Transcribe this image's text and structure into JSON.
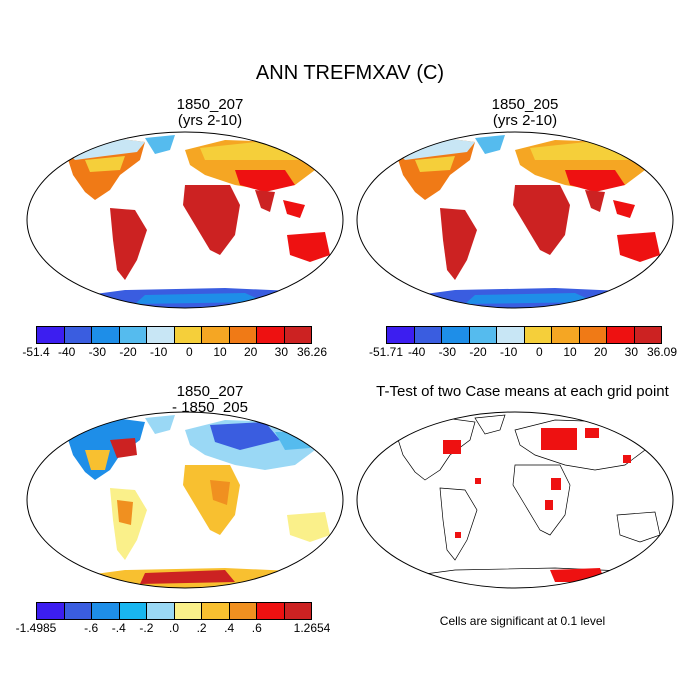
{
  "title": "ANN TREFMXAV (C)",
  "panels": [
    {
      "title_line1": "1850_207",
      "title_line2": "(yrs 2-10)"
    },
    {
      "title_line1": "1850_205",
      "title_line2": "(yrs 2-10)"
    },
    {
      "title_line1": "1850_207",
      "title_line2": "- 1850_205"
    },
    {
      "title_line1": "T-Test of two Case means at each grid point",
      "title_line2": ""
    }
  ],
  "colorbars": [
    {
      "colors": [
        "#3c1ef0",
        "#3a5de0",
        "#1e8ee8",
        "#55bbee",
        "#c8e6f5",
        "#f5cf3a",
        "#f5a623",
        "#f07a16",
        "#ee1111",
        "#cc2222"
      ],
      "ticks": [
        "-51.4",
        "-40",
        "-30",
        "-20",
        "-10",
        "0",
        "10",
        "20",
        "30",
        "36.26"
      ]
    },
    {
      "colors": [
        "#3c1ef0",
        "#3a5de0",
        "#1e8ee8",
        "#55bbee",
        "#c8e6f5",
        "#f5cf3a",
        "#f5a623",
        "#f07a16",
        "#ee1111",
        "#cc2222"
      ],
      "ticks": [
        "-51.71",
        "-40",
        "-30",
        "-20",
        "-10",
        "0",
        "10",
        "20",
        "30",
        "36.09"
      ]
    },
    {
      "colors": [
        "#3c1ef0",
        "#3a5de0",
        "#1e8ee8",
        "#19b6f0",
        "#9ad8f5",
        "#faf08a",
        "#f8c030",
        "#f09020",
        "#ee1111",
        "#cc2222"
      ],
      "ticks": [
        "-1.4985",
        "",
        "-.6",
        "-.4",
        "-.2",
        ".0",
        ".2",
        ".4",
        ".6",
        "",
        "1.2654"
      ]
    }
  ],
  "significance_note": "Cells are significant at 0.1 level",
  "colors": {
    "land_warm": "#d62f2f",
    "land_mid": "#ee1111",
    "land_temperate": "#f5a623",
    "land_cool": "#f5cf3a",
    "land_cold": "#c8e6f5",
    "antarctica": "#3a5de0",
    "significant": "#ee1111"
  }
}
